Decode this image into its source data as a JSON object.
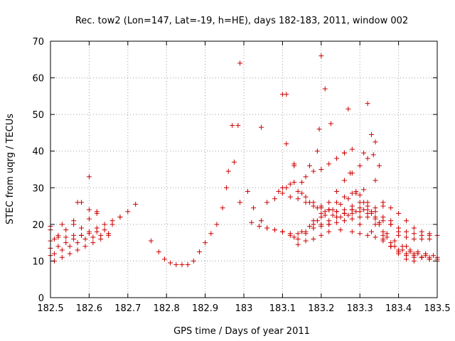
{
  "chart_data": {
    "type": "scatter",
    "title": "Rec. tow2 (Lon=147, Lat=-19, h=HE), days 182-183, 2011, window 002",
    "xlabel": "GPS time / Days of year 2011",
    "ylabel": "STEC from uqrg / TECUs",
    "xlim": [
      182.5,
      183.5
    ],
    "ylim": [
      0,
      70
    ],
    "xticks": [
      "182.5",
      "182.6",
      "182.7",
      "182.8",
      "182.9",
      "183",
      "183.1",
      "183.2",
      "183.3",
      "183.4",
      "183.5"
    ],
    "yticks": [
      "0",
      "10",
      "20",
      "30",
      "40",
      "50",
      "60",
      "70"
    ],
    "grid": true,
    "marker": "+",
    "color": "#cc0000",
    "series": [
      {
        "x": [
          182.5,
          182.51,
          182.52,
          182.54,
          182.56,
          182.58,
          182.6,
          182.62,
          182.64,
          182.66,
          182.68,
          182.7,
          182.5,
          182.52,
          182.54,
          182.56,
          182.58,
          182.6,
          182.62,
          182.64,
          182.66,
          182.68,
          182.5,
          182.51,
          182.53,
          182.55,
          182.57,
          182.59,
          182.61,
          182.63,
          182.65,
          182.5,
          182.52,
          182.54,
          182.56,
          182.58,
          182.6,
          182.62,
          182.51,
          182.53,
          182.55,
          182.57,
          182.59,
          182.61,
          182.63,
          182.65,
          182.5,
          182.53,
          182.56,
          182.6,
          182.62,
          182.57,
          182.58,
          182.6,
          182.72,
          182.76,
          182.78,
          182.795,
          182.81,
          182.825,
          182.84,
          182.855,
          182.87,
          182.885,
          182.9,
          182.915,
          182.93,
          182.945,
          182.955,
          182.96,
          182.975,
          182.985,
          182.99,
          183.01,
          183.025,
          183.045,
          183.06,
          183.08,
          183.1,
          183.12,
          183.14,
          183.16,
          183.18,
          183.2,
          183.22,
          183.25,
          183.28,
          183.3,
          183.32,
          183.34,
          183.36,
          183.38,
          183.4,
          183.42,
          183.44,
          183.46,
          183.48,
          183.5,
          183.02,
          183.04,
          183.06,
          183.08,
          183.1,
          183.12,
          183.14,
          183.16,
          183.18,
          183.2,
          183.22,
          183.24,
          183.26,
          183.28,
          183.3,
          183.32,
          183.34,
          183.36,
          183.38,
          183.4,
          183.42,
          183.44,
          183.46,
          183.48,
          183.5,
          183.06,
          183.08,
          183.1,
          183.12,
          183.14,
          183.16,
          183.18,
          183.2,
          183.22,
          183.24,
          183.26,
          183.28,
          183.3,
          183.32,
          183.34,
          183.36,
          183.38,
          183.4,
          183.42,
          183.44,
          183.46,
          183.48,
          183.1,
          183.12,
          183.14,
          183.16,
          183.18,
          183.2,
          183.22,
          183.24,
          183.26,
          183.28,
          183.3,
          183.32,
          183.34,
          183.36,
          183.38,
          183.4,
          183.42,
          183.44,
          183.46,
          183.48,
          183.09,
          183.11,
          183.13,
          183.15,
          183.17,
          183.19,
          183.21,
          183.23,
          183.25,
          183.27,
          183.29,
          183.31,
          183.33,
          183.35,
          183.37,
          183.39,
          183.41,
          183.43,
          183.45,
          183.47,
          183.49,
          183.13,
          183.15,
          183.17,
          183.19,
          183.21,
          183.23,
          183.25,
          183.27,
          183.29,
          183.31,
          183.33,
          183.35,
          183.37,
          183.39,
          183.41,
          183.43,
          183.45,
          183.47,
          183.14,
          183.16,
          183.18,
          183.2,
          183.22,
          183.24,
          183.26,
          183.28,
          183.3,
          183.32,
          183.34,
          183.36,
          183.38,
          183.4,
          183.42,
          183.44,
          183.46,
          183.48,
          183.5,
          183.18,
          183.2,
          183.22,
          183.24,
          183.26,
          183.28,
          183.3,
          183.32,
          183.34,
          183.36,
          183.38,
          183.4,
          183.42,
          183.44,
          183.18,
          183.2,
          183.22,
          183.24,
          183.26,
          183.28,
          183.3,
          183.32,
          183.34,
          183.36,
          183.38,
          183.4,
          183.42,
          183.44,
          183.46,
          183.48,
          183.5,
          183.195,
          183.21,
          183.225,
          183.27,
          183.32,
          183.2,
          183.26,
          183.275,
          183.31,
          183.33,
          183.34,
          183.335,
          183.35,
          183.11,
          183.13,
          183.15,
          183.17,
          183.19,
          183.22,
          183.24,
          183.26,
          183.28,
          183.3,
          183.33,
          183.36,
          183.38,
          183.29,
          183.31,
          183.16,
          183.18,
          183.2,
          183.22,
          183.24,
          183.26,
          183.28
        ],
        "y": [
          15.5,
          16,
          16.5,
          16.5,
          17,
          17,
          17.5,
          18,
          18.5,
          20,
          22,
          23.5,
          13.5,
          14,
          15,
          16,
          17,
          18,
          19,
          20,
          21,
          22,
          11.5,
          12,
          13,
          14,
          15,
          16,
          16.5,
          17,
          17.5,
          19.5,
          17,
          18.5,
          20,
          19,
          21.5,
          23,
          10,
          11,
          12,
          13,
          14,
          15,
          16,
          17,
          18.5,
          20,
          21,
          24,
          23.5,
          26,
          26,
          33,
          25.5,
          15.5,
          12.5,
          10.5,
          9.5,
          9,
          9,
          9,
          10,
          12.5,
          15,
          17.5,
          20,
          24.5,
          30,
          34.5,
          37,
          47,
          26,
          29,
          24.5,
          21,
          19,
          18.5,
          18,
          17,
          16,
          15.5,
          16,
          17,
          18,
          18.5,
          18,
          17.5,
          17,
          16.5,
          15.5,
          14,
          12.5,
          11.5,
          11,
          11,
          10.5,
          10.5,
          20.5,
          19.5,
          19,
          18.5,
          18,
          17.5,
          17.5,
          18,
          19,
          19.5,
          20,
          20.5,
          21,
          21.5,
          22,
          22,
          21.5,
          21,
          20,
          19,
          18,
          17.5,
          17,
          17,
          17,
          26,
          27,
          28.5,
          27.5,
          27,
          26,
          25,
          24.5,
          24,
          23.5,
          23,
          23,
          23.5,
          24,
          24.5,
          25,
          24.5,
          23,
          21,
          19,
          18,
          17.5,
          30,
          31,
          29,
          27.5,
          26,
          25,
          24,
          23.5,
          24,
          25,
          26,
          25,
          23.5,
          22,
          20,
          18,
          16.5,
          16,
          16,
          16,
          29,
          30,
          31.5,
          28.5,
          26,
          24.5,
          23.5,
          22.5,
          22,
          22.5,
          23.5,
          24,
          23,
          20.5,
          17.5,
          15.5,
          14,
          13,
          12.5,
          12,
          11.5,
          16.5,
          18,
          19.5,
          21,
          22.5,
          24,
          25.5,
          27,
          28.5,
          26,
          23.5,
          20,
          16.5,
          14,
          13,
          12.5,
          12,
          11.5,
          14.5,
          17.5,
          20,
          22,
          24,
          26,
          27.5,
          28.5,
          28,
          26,
          22,
          18,
          15,
          13,
          12,
          11.5,
          11,
          11,
          11,
          19,
          20,
          21,
          22,
          23,
          24,
          24.5,
          23,
          20,
          17,
          14,
          12,
          10.5,
          10,
          21,
          23,
          26,
          29,
          32,
          34,
          36,
          38,
          32,
          26,
          21,
          17,
          14,
          12,
          11,
          10.5,
          10,
          46,
          57,
          47.5,
          51.5,
          53,
          66,
          39.5,
          34,
          39.5,
          44.5,
          42.5,
          39,
          36,
          55.5,
          36.5,
          31.5,
          36,
          40,
          20,
          22,
          23,
          24,
          20,
          18,
          16,
          14,
          29,
          29.5,
          33,
          34.5,
          35,
          36.5,
          38,
          39.5,
          40.5
        ],
        "xy": [
          [
            182.97,
            47
          ],
          [
            182.99,
            64
          ],
          [
            183.045,
            46.5
          ],
          [
            183.1,
            55.5
          ],
          [
            183.11,
            42
          ],
          [
            183.13,
            36
          ]
        ]
      }
    ]
  }
}
